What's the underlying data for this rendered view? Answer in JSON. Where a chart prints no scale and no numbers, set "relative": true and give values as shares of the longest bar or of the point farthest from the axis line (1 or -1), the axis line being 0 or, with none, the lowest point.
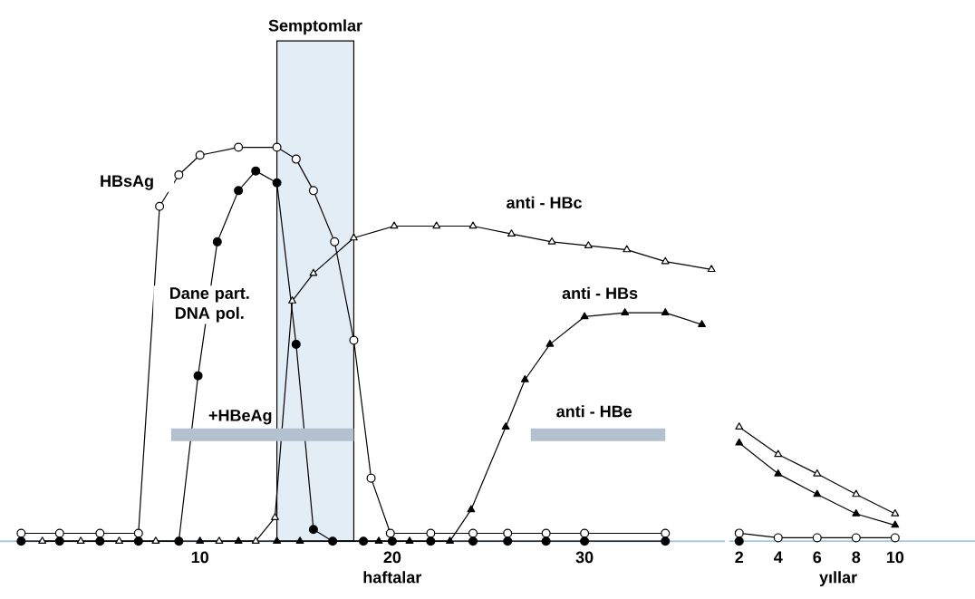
{
  "chart_data": [
    {
      "type": "line",
      "relative": true,
      "xlim": [
        -0.4,
        37.3
      ],
      "xticks": [
        10,
        20,
        30
      ],
      "xlabel": "haftalar",
      "bands": [
        {
          "axis": "x",
          "from": 14.0,
          "to": 18.0,
          "label": "Semptomlar",
          "color": "#e3edf6"
        }
      ],
      "series": [
        {
          "name": "HBsAg",
          "color": "#ffffff",
          "marker": "circle",
          "x": [
            0.7,
            2.7,
            4.8,
            6.8,
            7.9,
            8.9,
            10.0,
            12.0,
            14.0,
            15.0,
            15.9,
            17.0,
            18.0,
            18.9,
            19.9,
            22.0,
            24.2,
            26.0,
            28.0,
            30.0,
            34.2
          ],
          "values": [
            0.02,
            0.02,
            0.02,
            0.02,
            0.85,
            0.93,
            0.98,
            1,
            1,
            0.97,
            0.89,
            0.76,
            0.51,
            0.16,
            0.02,
            0.02,
            0.02,
            0.02,
            0.02,
            0.02,
            0.02
          ]
        },
        {
          "name": "Dane part. DNA pol.",
          "color": "#000000",
          "marker": "circle",
          "x": [
            0.7,
            2.7,
            4.8,
            6.8,
            8.9,
            9.9,
            10.9,
            12.0,
            12.9,
            14.0,
            15.0,
            15.9,
            16.9,
            18.5,
            20.0,
            22.0,
            24.2,
            26.0,
            28.0,
            30.0,
            34.2
          ],
          "values": [
            0,
            0,
            0,
            0,
            0,
            0.42,
            0.76,
            0.89,
            0.94,
            0.91,
            0.5,
            0.03,
            0,
            0,
            0,
            0,
            0,
            0,
            0,
            0,
            0
          ]
        },
        {
          "name": "anti - HBc",
          "color": "#ffffff",
          "marker": "triangle",
          "x": [
            1.8,
            3.8,
            5.8,
            7.7,
            11.0,
            12.9,
            13.9,
            14.8,
            15.9,
            18.0,
            20.1,
            22.3,
            24.2,
            26.2,
            28.3,
            30.2,
            32.2,
            34.2,
            36.6
          ],
          "values": [
            0,
            0,
            0,
            0,
            0,
            0,
            0.06,
            0.61,
            0.68,
            0.77,
            0.8,
            0.8,
            0.8,
            0.78,
            0.76,
            0.75,
            0.74,
            0.71,
            0.69
          ]
        },
        {
          "name": "anti - HBs",
          "color": "#000000",
          "marker": "triangle",
          "x": [
            10.0,
            12.0,
            14.0,
            15.2,
            19.3,
            20.9,
            23.0,
            24.1,
            25.9,
            26.9,
            28.2,
            30.0,
            32.1,
            34.2,
            36.1
          ],
          "values": [
            0,
            0,
            0,
            0,
            0,
            0,
            0,
            0.08,
            0.29,
            0.41,
            0.5,
            0.57,
            0.58,
            0.58,
            0.55
          ]
        },
        {
          "name": "+HBeAg",
          "color": "#b3c0cf",
          "marker": "none",
          "x": [
            8.5,
            18.0
          ],
          "values": [
            0.27,
            0.27
          ]
        },
        {
          "name": "anti - HBe",
          "color": "#b3c0cf",
          "marker": "none",
          "x": [
            27.2,
            34.2
          ],
          "values": [
            0.27,
            0.27
          ]
        }
      ]
    },
    {
      "type": "line",
      "relative": true,
      "xlim": [
        1.5,
        14.1
      ],
      "xticks": [
        2,
        4,
        6,
        8,
        10
      ],
      "xlabel": "yıllar",
      "series": [
        {
          "color": "#ffffff",
          "marker": "circle",
          "x": [
            2,
            4,
            6,
            8,
            10
          ],
          "values": [
            0.07,
            0.03,
            0.03,
            0.03,
            0.03
          ]
        },
        {
          "color": "#000000",
          "marker": "circle",
          "x": [
            2
          ],
          "values": [
            0
          ]
        },
        {
          "color": "#ffffff",
          "marker": "triangle",
          "x": [
            2,
            4,
            6,
            8,
            10
          ],
          "values": [
            1,
            0.76,
            0.59,
            0.41,
            0.24
          ]
        },
        {
          "color": "#000000",
          "marker": "triangle",
          "x": [
            2,
            4,
            6,
            8,
            10
          ],
          "values": [
            0.86,
            0.59,
            0.41,
            0.24,
            0.14
          ]
        }
      ]
    }
  ]
}
